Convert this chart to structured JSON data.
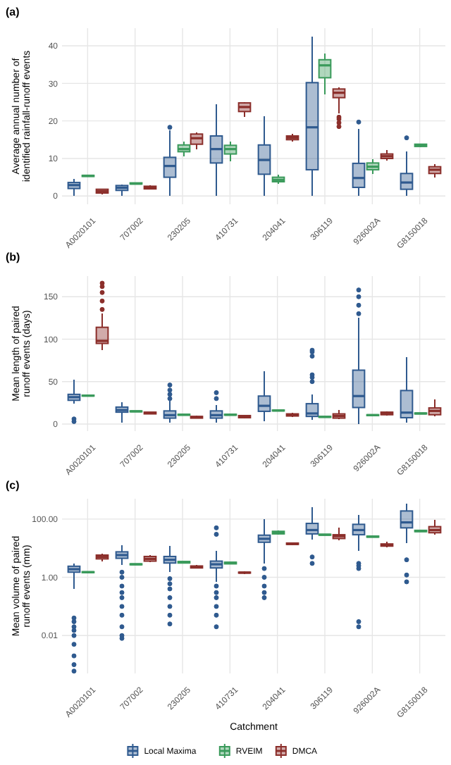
{
  "chart_data": [
    {
      "type": "box",
      "title": "(a)",
      "ylabel": "Average annual number of identified rainfall-runoff events",
      "categories": [
        "A0020101",
        "707002",
        "230205",
        "410731",
        "204041",
        "306119",
        "926002A",
        "G8150018"
      ],
      "ylim": [
        -2.2,
        44.7
      ],
      "yticks": [
        0,
        10,
        20,
        30,
        40
      ],
      "grid": true,
      "series": [
        {
          "color": "#2f5a8f",
          "boxes": [
            {
              "low": 0,
              "q1": 2,
              "median": 2.9,
              "q3": 3.6,
              "high": 4.5
            },
            {
              "low": 0,
              "q1": 1.5,
              "median": 2.2,
              "q3": 2.8,
              "high": 3
            },
            {
              "low": 0,
              "q1": 5,
              "median": 8,
              "q3": 10.3,
              "high": 17.5,
              "outliers": [
                18.3
              ]
            },
            {
              "low": 0,
              "q1": 8.8,
              "median": 12.5,
              "q3": 16,
              "high": 24.5
            },
            {
              "low": 0,
              "q1": 5.8,
              "median": 9.6,
              "q3": 13.6,
              "high": 21.3
            },
            {
              "low": 0,
              "q1": 7,
              "median": 18.3,
              "q3": 30.2,
              "high": 42.5
            },
            {
              "low": 0,
              "q1": 2.3,
              "median": 4.8,
              "q3": 8.7,
              "high": 17.8,
              "outliers": [
                19.7
              ]
            },
            {
              "low": 0,
              "q1": 1.8,
              "median": 3.6,
              "q3": 6,
              "high": 11.8,
              "outliers": [
                15.5
              ]
            }
          ]
        },
        {
          "color": "#3a9a5b",
          "boxes": [
            {
              "low": 5.1,
              "q1": 5.2,
              "median": 5.4,
              "q3": 5.5,
              "high": 5.6
            },
            {
              "low": 3.1,
              "q1": 3.2,
              "median": 3.3,
              "q3": 3.5,
              "high": 3.6
            },
            {
              "low": 10.5,
              "q1": 11.8,
              "median": 12.5,
              "q3": 13.6,
              "high": 14.5
            },
            {
              "low": 9.2,
              "q1": 11.2,
              "median": 12.5,
              "q3": 13.5,
              "high": 14.5
            },
            {
              "low": 3.3,
              "q1": 3.8,
              "median": 4.3,
              "q3": 5,
              "high": 5.6
            },
            {
              "low": 27,
              "q1": 31.5,
              "median": 34.8,
              "q3": 36.3,
              "high": 38
            },
            {
              "low": 5.8,
              "q1": 7,
              "median": 7.8,
              "q3": 8.8,
              "high": 9.8
            },
            {
              "low": 13,
              "q1": 13.2,
              "median": 13.5,
              "q3": 13.8,
              "high": 14
            }
          ]
        },
        {
          "color": "#8b2e2a",
          "boxes": [
            {
              "low": 0.5,
              "q1": 0.8,
              "median": 1.3,
              "q3": 1.8,
              "high": 2
            },
            {
              "low": 1.8,
              "q1": 1.9,
              "median": 2.2,
              "q3": 2.6,
              "high": 2.8
            },
            {
              "low": 12.5,
              "q1": 13.8,
              "median": 15.4,
              "q3": 16.5,
              "high": 17
            },
            {
              "low": 21,
              "q1": 22.5,
              "median": 23.7,
              "q3": 24.8,
              "high": 25
            },
            {
              "low": 14.5,
              "q1": 15,
              "median": 15.5,
              "q3": 16,
              "high": 16.5
            },
            {
              "low": 22,
              "q1": 26.2,
              "median": 27.5,
              "q3": 28.5,
              "high": 29,
              "outliers": [
                18.5,
                19.5,
                20.5,
                21
              ]
            },
            {
              "low": 9.5,
              "q1": 10,
              "median": 10.6,
              "q3": 11.2,
              "high": 12.2
            },
            {
              "low": 5,
              "q1": 6,
              "median": 7,
              "q3": 7.8,
              "high": 8.5
            }
          ]
        }
      ]
    },
    {
      "type": "box",
      "title": "(b)",
      "ylabel": "Mean length of paired runoff events (days)",
      "categories": [
        "A0020101",
        "707002",
        "230205",
        "410731",
        "204041",
        "306119",
        "926002A",
        "G8150018"
      ],
      "ylim": [
        -8.3,
        174.3
      ],
      "yticks": [
        0,
        50,
        100,
        150
      ],
      "grid": true,
      "series": [
        {
          "color": "#2f5a8f",
          "boxes": [
            {
              "low": 24,
              "q1": 28,
              "median": 31.7,
              "q3": 35,
              "high": 52,
              "outliers": [
                3,
                6
              ]
            },
            {
              "low": 2,
              "q1": 14,
              "median": 16.5,
              "q3": 20,
              "high": 26
            },
            {
              "low": 2,
              "q1": 7,
              "median": 10.5,
              "q3": 15.5,
              "high": 27,
              "outliers": [
                30,
                35,
                40,
                46
              ]
            },
            {
              "low": 2,
              "q1": 7,
              "median": 10.5,
              "q3": 15.5,
              "high": 22,
              "outliers": [
                30,
                37
              ]
            },
            {
              "low": 3,
              "q1": 15,
              "median": 21.5,
              "q3": 33,
              "high": 62
            },
            {
              "low": 5,
              "q1": 9,
              "median": 12.5,
              "q3": 24,
              "high": 35,
              "outliers": [
                50,
                55,
                58,
                80,
                85,
                87
              ]
            },
            {
              "low": 0,
              "q1": 19.5,
              "median": 33,
              "q3": 63.5,
              "high": 125,
              "outliers": [
                130,
                140,
                150,
                158
              ]
            },
            {
              "low": 2,
              "q1": 7.5,
              "median": 13.5,
              "q3": 39.5,
              "high": 79
            }
          ]
        },
        {
          "color": "#3a9a5b",
          "boxes": [
            {
              "low": 32.5,
              "q1": 33,
              "median": 33.5,
              "q3": 34,
              "high": 34.5
            },
            {
              "low": 14,
              "q1": 14.5,
              "median": 15,
              "q3": 15.5,
              "high": 16
            },
            {
              "low": 10,
              "q1": 10.5,
              "median": 11,
              "q3": 11.5,
              "high": 12
            },
            {
              "low": 10,
              "q1": 10.5,
              "median": 11,
              "q3": 11.5,
              "high": 12
            },
            {
              "low": 15,
              "q1": 15.5,
              "median": 16,
              "q3": 16.5,
              "high": 17
            },
            {
              "low": 7.5,
              "q1": 8,
              "median": 8.5,
              "q3": 9,
              "high": 9.5
            },
            {
              "low": 9.5,
              "q1": 10,
              "median": 10.5,
              "q3": 11,
              "high": 11.5
            },
            {
              "low": 11.5,
              "q1": 12,
              "median": 12.5,
              "q3": 13,
              "high": 13.5
            }
          ]
        },
        {
          "color": "#8b2e2a",
          "boxes": [
            {
              "low": 87,
              "q1": 95,
              "median": 98,
              "q3": 114,
              "high": 130,
              "outliers": [
                135,
                145,
                155,
                162,
                166
              ]
            },
            {
              "low": 11.5,
              "q1": 12,
              "median": 13,
              "q3": 14,
              "high": 14.5
            },
            {
              "low": 6.5,
              "q1": 7,
              "median": 8,
              "q3": 9,
              "high": 10
            },
            {
              "low": 7,
              "q1": 7.5,
              "median": 8.7,
              "q3": 10,
              "high": 11
            },
            {
              "low": 8.5,
              "q1": 9.5,
              "median": 11,
              "q3": 12,
              "high": 13
            },
            {
              "low": 6,
              "q1": 7,
              "median": 9.5,
              "q3": 12,
              "high": 17
            },
            {
              "low": 10,
              "q1": 11,
              "median": 13,
              "q3": 14,
              "high": 15
            },
            {
              "low": 9,
              "q1": 11,
              "median": 15.5,
              "q3": 19,
              "high": 29
            }
          ]
        }
      ]
    },
    {
      "type": "box",
      "title": "(c)",
      "xlabel": "Catchment",
      "ylabel": "Mean volume of paired runoff events (mm)",
      "categories": [
        "A0020101",
        "707002",
        "230205",
        "410731",
        "204041",
        "306119",
        "926002A",
        "G8150018"
      ],
      "log": true,
      "ylim": [
        0.0005,
        500
      ],
      "yticks": [
        {
          "value": 0.01,
          "label": "0.01"
        },
        {
          "value": 1,
          "label": "1.00"
        },
        {
          "value": 100,
          "label": "100.00"
        }
      ],
      "grid": true,
      "legend": "bottom",
      "series": [
        {
          "name": "Local Maxima",
          "color": "#2f5a8f",
          "boxes": [
            {
              "low": 0.4,
              "q1": 1.5,
              "median": 1.9,
              "q3": 2.4,
              "high": 3,
              "outliers": [
                0.0006,
                0.001,
                0.002,
                0.005,
                0.01,
                0.015,
                0.02,
                0.03,
                0.04
              ]
            },
            {
              "low": 2.7,
              "q1": 4.5,
              "median": 5.8,
              "q3": 7.5,
              "high": 13,
              "outliers": [
                0.008,
                0.01,
                0.02,
                0.05,
                0.1,
                0.2,
                0.3,
                0.5,
                1,
                1.5
              ]
            },
            {
              "low": 1.5,
              "q1": 3.1,
              "median": 4,
              "q3": 5.2,
              "high": 12,
              "outliers": [
                0.025,
                0.05,
                0.1,
                0.2,
                0.4,
                0.6,
                0.9
              ]
            },
            {
              "low": 0.7,
              "q1": 2.1,
              "median": 2.8,
              "q3": 3.6,
              "high": 8,
              "outliers": [
                0.02,
                0.05,
                0.1,
                0.2,
                0.3,
                0.5,
                30,
                50
              ]
            },
            {
              "low": 3,
              "q1": 16,
              "median": 21,
              "q3": 28,
              "high": 100,
              "outliers": [
                0.2,
                0.3,
                0.5,
                1,
                2
              ]
            },
            {
              "low": 20,
              "q1": 31,
              "median": 42,
              "q3": 71,
              "high": 250,
              "outliers": [
                3,
                5
              ]
            },
            {
              "low": 8,
              "q1": 29,
              "median": 42,
              "q3": 66,
              "high": 140,
              "outliers": [
                0.02,
                0.03,
                2,
                2.5,
                3
              ]
            },
            {
              "low": 15,
              "q1": 50,
              "median": 77,
              "q3": 190,
              "high": 330,
              "outliers": [
                0.7,
                1.2,
                4
              ]
            }
          ]
        },
        {
          "name": "RVEIM",
          "color": "#3a9a5b",
          "boxes": [
            {
              "low": 1.4,
              "q1": 1.45,
              "median": 1.5,
              "q3": 1.55,
              "high": 1.6
            },
            {
              "low": 2.6,
              "q1": 2.7,
              "median": 2.8,
              "q3": 2.9,
              "high": 3
            },
            {
              "low": 3,
              "q1": 3.1,
              "median": 3.3,
              "q3": 3.5,
              "high": 3.6
            },
            {
              "low": 2.8,
              "q1": 2.9,
              "median": 3.1,
              "q3": 3.3,
              "high": 3.4
            },
            {
              "low": 30,
              "q1": 31,
              "median": 34,
              "q3": 38,
              "high": 40
            },
            {
              "low": 27,
              "q1": 28,
              "median": 29,
              "q3": 30,
              "high": 31
            },
            {
              "low": 23,
              "q1": 24,
              "median": 25,
              "q3": 26,
              "high": 27
            },
            {
              "low": 36,
              "q1": 37,
              "median": 39,
              "q3": 41,
              "high": 42
            }
          ]
        },
        {
          "name": "DMCA",
          "color": "#8b2e2a",
          "boxes": [
            {
              "low": 3.5,
              "q1": 4.3,
              "median": 5,
              "q3": 5.8,
              "high": 6.5
            },
            {
              "low": 3.3,
              "q1": 3.6,
              "median": 4.3,
              "q3": 5.2,
              "high": 5.8
            },
            {
              "low": 2,
              "q1": 2.1,
              "median": 2.3,
              "q3": 2.45,
              "high": 2.6
            },
            {
              "low": 1.3,
              "q1": 1.4,
              "median": 1.45,
              "q3": 1.5,
              "high": 1.6
            },
            {
              "low": 13,
              "q1": 13.5,
              "median": 14,
              "q3": 15,
              "high": 15.5
            },
            {
              "low": 19,
              "q1": 21.5,
              "median": 26,
              "q3": 29,
              "high": 50
            },
            {
              "low": 11,
              "q1": 11.8,
              "median": 12.5,
              "q3": 14,
              "high": 17
            },
            {
              "low": 30,
              "q1": 34,
              "median": 42,
              "q3": 55,
              "high": 95
            }
          ]
        }
      ]
    }
  ]
}
